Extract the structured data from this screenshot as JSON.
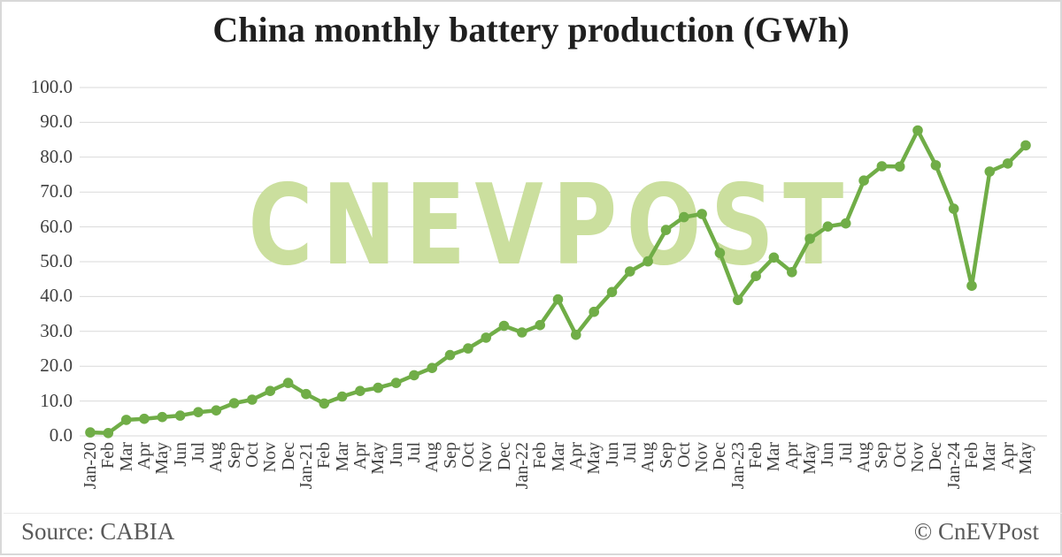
{
  "title": "China monthly battery production (GWh)",
  "watermark_text": "CNEVPOST",
  "footer": {
    "source_label": "Source: CABIA",
    "credit_label": "© CnEVPost"
  },
  "colors": {
    "line": "#70ad47",
    "marker": "#70ad47",
    "watermark": "#cbdf9e",
    "grid": "#d9d9d9",
    "axis_text": "#404040",
    "title_text": "#1f1f1f",
    "footer_text": "#595959",
    "border": "#d8d8d8"
  },
  "chart_data": {
    "type": "line",
    "title": "China monthly battery production (GWh)",
    "xlabel": "",
    "ylabel": "",
    "legend": "none",
    "grid": "horizontal",
    "ylim": [
      0,
      100
    ],
    "ytick_step": 10,
    "ytick_decimals": 1,
    "x": [
      "Jan-20",
      "Feb",
      "Mar",
      "Apr",
      "May",
      "Jun",
      "Jul",
      "Aug",
      "Sep",
      "Oct",
      "Nov",
      "Dec",
      "Jan-21",
      "Feb",
      "Mar",
      "Apr",
      "May",
      "Jun",
      "Jul",
      "Aug",
      "Sep",
      "Oct",
      "Nov",
      "Dec",
      "Jan-22",
      "Feb",
      "Mar",
      "Apr",
      "May",
      "Jun",
      "Jul",
      "Aug",
      "Sep",
      "Oct",
      "Nov",
      "Dec",
      "Jan-23",
      "Feb",
      "Mar",
      "Apr",
      "May",
      "Jun",
      "Jul",
      "Aug",
      "Sep",
      "Oct",
      "Nov",
      "Dec",
      "Jan-24",
      "Feb",
      "Mar",
      "Apr",
      "May"
    ],
    "series": [
      {
        "name": "Monthly battery production (GWh)",
        "values": [
          1.0,
          0.8,
          4.6,
          4.9,
          5.4,
          5.8,
          6.8,
          7.3,
          9.4,
          10.4,
          12.9,
          15.2,
          12.0,
          9.3,
          11.3,
          12.9,
          13.8,
          15.2,
          17.4,
          19.5,
          23.2,
          25.1,
          28.2,
          31.6,
          29.7,
          31.8,
          39.2,
          29.0,
          35.6,
          41.3,
          47.2,
          50.1,
          59.1,
          62.8,
          63.7,
          52.5,
          39.0,
          45.9,
          51.2,
          47.0,
          56.6,
          60.1,
          61.0,
          73.3,
          77.4,
          77.3,
          87.7,
          77.7,
          65.2,
          43.1,
          75.9,
          78.2,
          83.4
        ]
      }
    ]
  }
}
